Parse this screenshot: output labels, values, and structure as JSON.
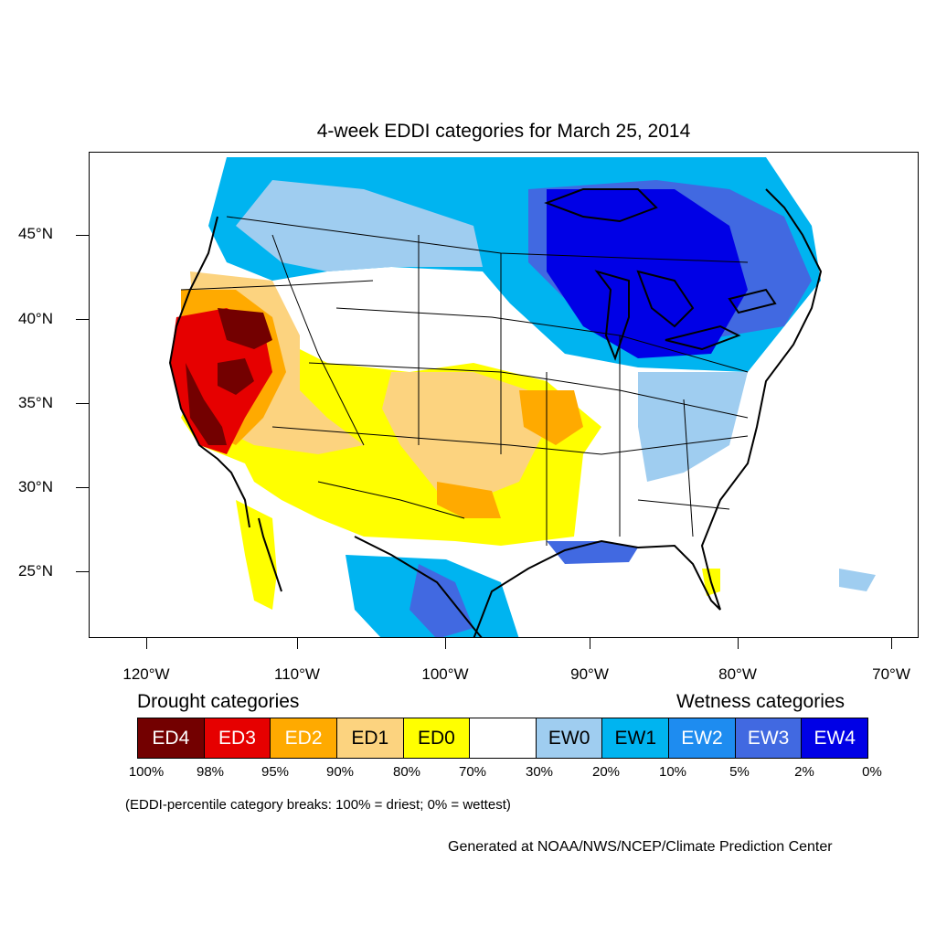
{
  "title": "4-week EDDI categories for March 25, 2014",
  "lat_labels": [
    "45°N",
    "40°N",
    "35°N",
    "30°N",
    "25°N"
  ],
  "lon_labels": [
    "120°W",
    "110°W",
    "100°W",
    "90°W",
    "80°W",
    "70°W"
  ],
  "legend": {
    "drought_heading": "Drought categories",
    "wetness_heading": "Wetness categories",
    "categories": [
      {
        "label": "ED4",
        "color": "#730000",
        "text_color": "#ffffff"
      },
      {
        "label": "ED3",
        "color": "#e60000",
        "text_color": "#ffffff"
      },
      {
        "label": "ED2",
        "color": "#ffaa00",
        "text_color": "#ffffff"
      },
      {
        "label": "ED1",
        "color": "#fcd37f",
        "text_color": "#000000"
      },
      {
        "label": "ED0",
        "color": "#ffff00",
        "text_color": "#000000"
      },
      {
        "label": "",
        "color": "#ffffff",
        "text_color": "#000000"
      },
      {
        "label": "EW0",
        "color": "#9fcdf0",
        "text_color": "#000000"
      },
      {
        "label": "EW1",
        "color": "#00b4f0",
        "text_color": "#000000"
      },
      {
        "label": "EW2",
        "color": "#1e8cf0",
        "text_color": "#ffffff"
      },
      {
        "label": "EW3",
        "color": "#4169e1",
        "text_color": "#ffffff"
      },
      {
        "label": "EW4",
        "color": "#0000e6",
        "text_color": "#ffffff"
      }
    ],
    "breaks": [
      "100%",
      "98%",
      "95%",
      "90%",
      "80%",
      "70%",
      "30%",
      "20%",
      "10%",
      "5%",
      "2%",
      "0%"
    ]
  },
  "note": "(EDDI-percentile category breaks: 100% = driest; 0% = wettest)",
  "credit": "Generated at NOAA/NWS/NCEP/Climate Prediction Center"
}
